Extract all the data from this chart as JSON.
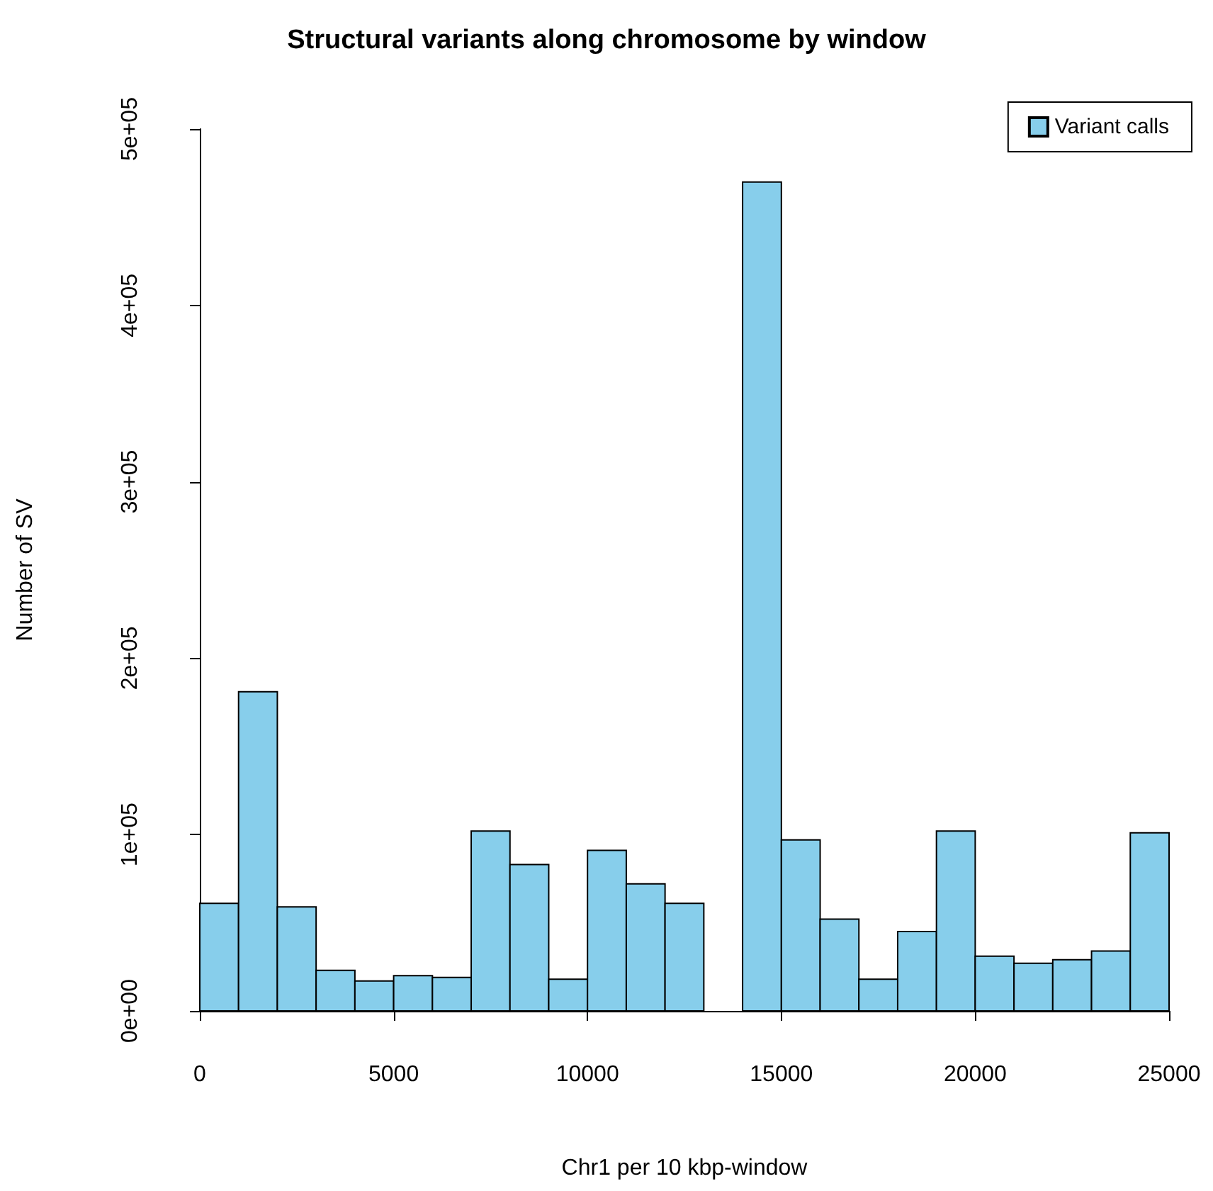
{
  "chart_data": {
    "type": "histogram",
    "title": "Structural variants along chromosome by window",
    "xlabel": "Chr1 per 10 kbp-window",
    "ylabel": "Number of SV",
    "bins": [
      0,
      1000,
      2000,
      3000,
      4000,
      5000,
      6000,
      7000,
      8000,
      9000,
      10000,
      11000,
      12000,
      13000,
      14000,
      15000,
      16000,
      17000,
      18000,
      19000,
      20000,
      21000,
      22000,
      23000,
      24000,
      25000
    ],
    "series": [
      {
        "name": "Variant calls",
        "color": "#87ceeb",
        "values": [
          61000,
          181000,
          59000,
          23000,
          17000,
          20000,
          19000,
          102000,
          83000,
          18000,
          91000,
          72000,
          61000,
          0,
          470000,
          97000,
          52000,
          18000,
          45000,
          102000,
          31000,
          27000,
          29000,
          34000,
          101000
        ]
      }
    ],
    "xlim": [
      0,
      25000
    ],
    "xticks": [
      0,
      5000,
      10000,
      15000,
      20000,
      25000
    ],
    "ylim": [
      0,
      500000
    ],
    "yticks": [
      {
        "value": 0,
        "label": "0e+00"
      },
      {
        "value": 100000,
        "label": "1e+05"
      },
      {
        "value": 200000,
        "label": "2e+05"
      },
      {
        "value": 300000,
        "label": "3e+05"
      },
      {
        "value": 400000,
        "label": "4e+05"
      },
      {
        "value": 500000,
        "label": "5e+05"
      }
    ],
    "grid": false,
    "legend": "top right"
  }
}
